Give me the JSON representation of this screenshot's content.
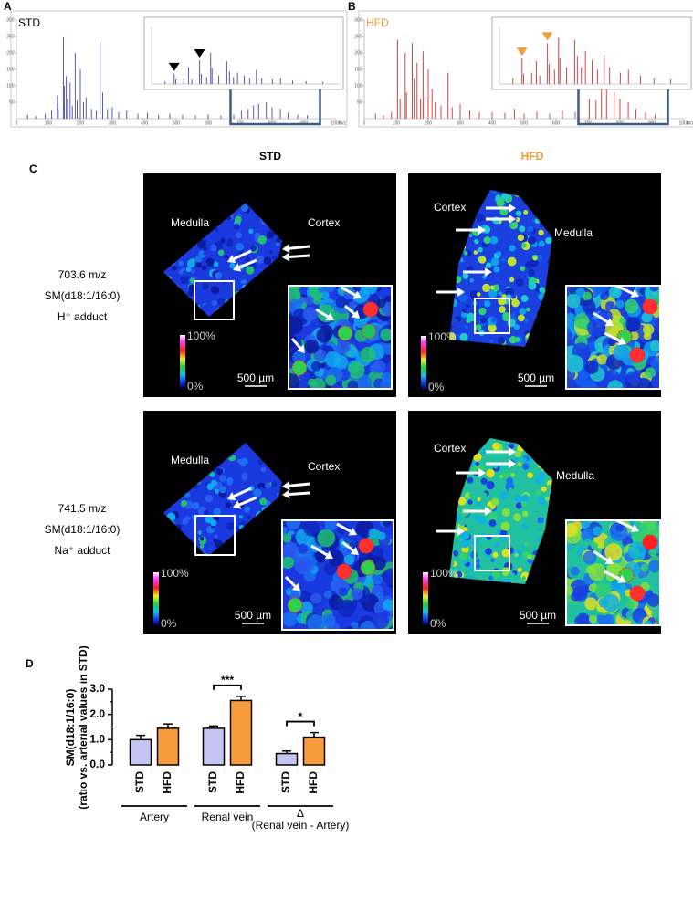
{
  "panel_labels": [
    "A",
    "B",
    "C",
    "D"
  ],
  "chart_data": [
    {
      "type": "spectrum",
      "title": "STD",
      "title_color": "#000000",
      "color": "#5b5bb0",
      "x": [
        35,
        60,
        90,
        110,
        128,
        131,
        147,
        150,
        156,
        160,
        168,
        175,
        184,
        190,
        200,
        210,
        218,
        235,
        250,
        262,
        270,
        285,
        300,
        320,
        345,
        380,
        410,
        445,
        480,
        520,
        560,
        600,
        640,
        680,
        704,
        725,
        742,
        758,
        782,
        800,
        826,
        850,
        880,
        910,
        950
      ],
      "values": [
        12,
        8,
        15,
        25,
        70,
        30,
        250,
        100,
        130,
        60,
        110,
        40,
        200,
        55,
        150,
        50,
        65,
        30,
        25,
        235,
        80,
        30,
        35,
        20,
        25,
        15,
        18,
        12,
        15,
        12,
        10,
        14,
        10,
        12,
        25,
        30,
        40,
        45,
        50,
        35,
        30,
        18,
        12,
        10,
        8
      ],
      "xlim": [
        0,
        1000
      ],
      "ylim": [
        0,
        300
      ],
      "xticks": [
        0,
        100,
        200,
        300,
        400,
        500,
        600,
        700,
        800,
        900,
        1000
      ],
      "yticks": [
        50,
        100,
        150,
        200,
        250,
        300
      ],
      "xlabel": "m/z",
      "inset": {
        "x": [
          690,
          703.6,
          706,
          718,
          725,
          730,
          741.5,
          744,
          752,
          758,
          760,
          770,
          782,
          786,
          792,
          798,
          808,
          816,
          826,
          834,
          850,
          862,
          880,
          900,
          925
        ],
        "values": [
          5,
          18,
          8,
          10,
          30,
          8,
          42,
          18,
          12,
          55,
          28,
          15,
          40,
          22,
          12,
          20,
          15,
          10,
          25,
          10,
          8,
          10,
          6,
          5,
          4
        ],
        "xlim": [
          670,
          950
        ],
        "ylim": [
          0,
          100
        ],
        "markers": [
          703.6,
          741.5
        ],
        "marker_color": "#000000"
      }
    },
    {
      "type": "spectrum",
      "title": "HFD",
      "title_color": "#f39a3a",
      "color": "#d84545",
      "x": [
        35,
        60,
        85,
        104,
        112,
        128,
        132,
        150,
        156,
        165,
        176,
        184,
        190,
        200,
        212,
        222,
        240,
        262,
        275,
        300,
        330,
        360,
        400,
        440,
        470,
        500,
        540,
        580,
        620,
        660,
        704,
        725,
        742,
        758,
        782,
        800,
        826,
        850,
        880,
        910,
        950
      ],
      "values": [
        15,
        10,
        20,
        240,
        60,
        200,
        80,
        230,
        120,
        170,
        60,
        205,
        70,
        150,
        90,
        50,
        40,
        140,
        35,
        45,
        25,
        20,
        20,
        18,
        30,
        15,
        22,
        15,
        25,
        20,
        60,
        55,
        90,
        95,
        80,
        60,
        50,
        30,
        20,
        12,
        8
      ],
      "xlim": [
        0,
        1000
      ],
      "ylim": [
        0,
        300
      ],
      "xticks": [
        0,
        100,
        200,
        300,
        400,
        500,
        600,
        700,
        800,
        900,
        1000
      ],
      "yticks": [
        50,
        100,
        150,
        200,
        250,
        300
      ],
      "xlabel": "m/z",
      "inset": {
        "x": [
          690,
          703.6,
          706,
          718,
          725,
          730,
          741.5,
          744,
          752,
          758,
          760,
          770,
          782,
          786,
          792,
          798,
          808,
          816,
          826,
          834,
          850,
          862,
          880,
          900,
          925
        ],
        "values": [
          10,
          45,
          18,
          20,
          40,
          15,
          72,
          35,
          25,
          82,
          45,
          30,
          78,
          50,
          30,
          58,
          42,
          25,
          52,
          30,
          20,
          25,
          15,
          10,
          8
        ],
        "xlim": [
          670,
          950
        ],
        "ylim": [
          0,
          100
        ],
        "markers": [
          703.6,
          741.5
        ],
        "marker_color": "#f39a3a"
      }
    },
    {
      "type": "bar",
      "ylabel": [
        "SM(d18:1/16:0)",
        "(ratio vs. arterial values in STD)"
      ],
      "groups": [
        "Artery",
        "Renal vein",
        "Δ"
      ],
      "group_sublabels": [
        null,
        null,
        "(Renal vein - Artery)"
      ],
      "series": [
        {
          "name": "STD",
          "color": "#c6c4f3",
          "values": [
            1.0,
            1.45,
            0.45
          ],
          "errors": [
            0.17,
            0.09,
            0.1
          ]
        },
        {
          "name": "HFD",
          "color": "#f79b3c",
          "values": [
            1.45,
            2.55,
            1.1
          ],
          "errors": [
            0.17,
            0.17,
            0.18
          ]
        }
      ],
      "annotations": [
        null,
        "***",
        "*"
      ],
      "ylim": [
        0,
        3
      ],
      "yticks": [
        {
          "value": 0,
          "label": "0.0"
        },
        {
          "value": 1,
          "label": "1.0"
        },
        {
          "value": 2,
          "label": "2.0"
        },
        {
          "value": 3,
          "label": "3.0"
        }
      ],
      "minor_yticks": [
        0.5,
        1.5,
        2.5
      ]
    }
  ],
  "figure_c": {
    "columns": [
      "STD",
      "HFD"
    ],
    "column_colors": [
      "#000000",
      "#f39a3a"
    ],
    "rows": [
      [
        "703.6 m/z",
        "SM(d18:1/16:0)",
        "H⁺ adduct"
      ],
      [
        "741.5 m/z",
        "SM(d18:1/16:0)",
        "Na⁺ adduct"
      ]
    ],
    "labels": {
      "medulla": "Medulla",
      "cortex": "Cortex",
      "scale": "500 µm",
      "cbar_max": "100%",
      "cbar_min": "0%"
    }
  }
}
